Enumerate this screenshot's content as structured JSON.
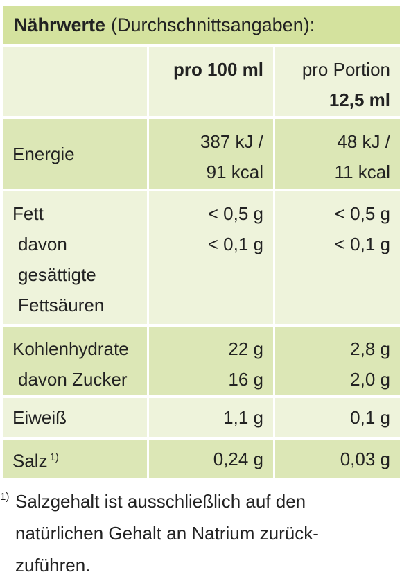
{
  "title": {
    "bold": "Nährwerte",
    "text": "(Durchschnittsangaben):"
  },
  "table": {
    "columns": [
      {
        "lines": [
          "pro 100 ml"
        ]
      },
      {
        "lines": [
          "pro Portion",
          "12,5 ml"
        ]
      }
    ],
    "rows": [
      {
        "label": [
          "Energie"
        ],
        "per_100": [
          "387 kJ /",
          "91 kcal"
        ],
        "per_portion": [
          "48 kJ /",
          "11 kcal"
        ]
      },
      {
        "label": [
          "Fett",
          "davon",
          "gesättigte",
          "Fettsäuren"
        ],
        "per_100": [
          "< 0,5 g",
          "< 0,1 g"
        ],
        "per_portion": [
          "< 0,5 g",
          "< 0,1 g"
        ]
      },
      {
        "label": [
          "Kohlenhydrate",
          "davon Zucker"
        ],
        "per_100": [
          "22 g",
          "16 g"
        ],
        "per_portion": [
          "2,8 g",
          "2,0 g"
        ]
      },
      {
        "label": [
          "Eiweiß"
        ],
        "per_100": [
          "1,1 g"
        ],
        "per_portion": [
          "0,1 g"
        ]
      },
      {
        "label": [
          "Salz"
        ],
        "label_note": "1)",
        "per_100": [
          "0,24 g"
        ],
        "per_portion": [
          "0,03 g"
        ]
      }
    ]
  },
  "footnote": {
    "marker": "1)",
    "lines": [
      "Salzgehalt ist ausschließlich auf den",
      "natürlichen Gehalt an Natrium zurück-",
      "zuführen."
    ]
  }
}
